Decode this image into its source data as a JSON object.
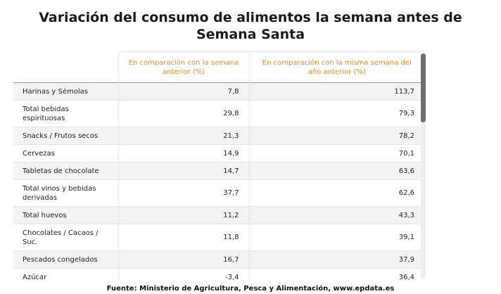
{
  "chart_data": {
    "type": "table",
    "title": "Variación del consumo de alimentos la semana antes de Semana Santa",
    "columns": [
      "",
      "En comparación con la semana anterior (%)",
      "En comparación con la misma semana del año anterior (%)"
    ],
    "rows": [
      {
        "label": "Harinas y Sémolas",
        "prev_week": "7,8",
        "prev_year": "113,7"
      },
      {
        "label": "Total bebidas espirituosas",
        "prev_week": "29,8",
        "prev_year": "79,3"
      },
      {
        "label": "Snacks / Frutos secos",
        "prev_week": "21,3",
        "prev_year": "78,2"
      },
      {
        "label": "Cervezas",
        "prev_week": "14,9",
        "prev_year": "70,1"
      },
      {
        "label": "Tabletas de chocolate",
        "prev_week": "14,7",
        "prev_year": "63,6"
      },
      {
        "label": "Total vinos y bebidas derivadas",
        "prev_week": "37,7",
        "prev_year": "62,6"
      },
      {
        "label": "Total huevos",
        "prev_week": "11,2",
        "prev_year": "43,3"
      },
      {
        "label": "Chocolates / Cacaos / Suc.",
        "prev_week": "11,8",
        "prev_year": "39,1"
      },
      {
        "label": "Pescados congelados",
        "prev_week": "16,7",
        "prev_year": "37,9"
      },
      {
        "label": "Azúcar",
        "prev_week": "-3,4",
        "prev_year": "36,4"
      }
    ],
    "header_color": "#e58a1f",
    "source": "Fuente: Ministerio de Agricultura, Pesca y Alimentación, www.epdata.es"
  }
}
